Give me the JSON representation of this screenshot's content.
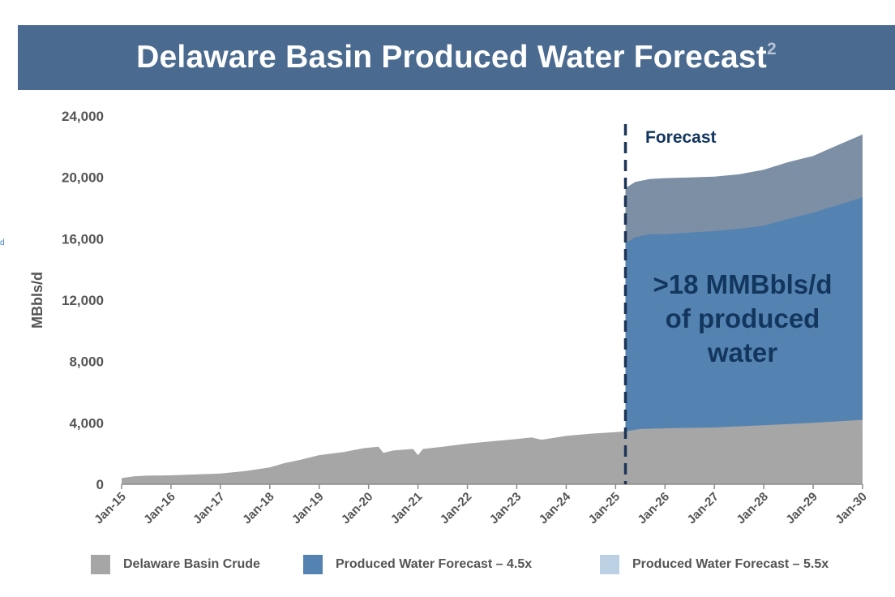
{
  "header": {
    "title": "Delaware Basin Produced Water Forecast",
    "superscript": "2"
  },
  "edge_fragment": "d",
  "colors": {
    "banner": "#4a6a90",
    "crude": "#a6a6a6",
    "water_45": "#5583b1",
    "water_55": "#7c8fa5",
    "legend_55_swatch": "#bcd0e3",
    "forecast_line": "#1c3556",
    "annotation": "#13365e"
  },
  "chart_data": {
    "type": "area",
    "title": "Delaware Basin Produced Water Forecast",
    "ylabel": "MBbls/d",
    "xlabel": "",
    "ylim": [
      0,
      24000
    ],
    "yticks": [
      0,
      4000,
      8000,
      12000,
      16000,
      20000,
      24000
    ],
    "ytick_labels": [
      "0",
      "4,000",
      "8,000",
      "12,000",
      "16,000",
      "20,000",
      "24,000"
    ],
    "xlim": [
      2015.0,
      2030.0
    ],
    "x_tick_labels": [
      "Jan-15",
      "Jan-16",
      "Jan-17",
      "Jan-18",
      "Jan-19",
      "Jan-20",
      "Jan-21",
      "Jan-22",
      "Jan-23",
      "Jan-24",
      "Jan-25",
      "Jan-26",
      "Jan-27",
      "Jan-28",
      "Jan-29",
      "Jan-30"
    ],
    "x_tick_values": [
      2015,
      2016,
      2017,
      2018,
      2019,
      2020,
      2021,
      2022,
      2023,
      2024,
      2025,
      2026,
      2027,
      2028,
      2029,
      2030
    ],
    "grid": false,
    "legend_position": "bottom",
    "forecast_start": 2025.2,
    "forecast_label": "Forecast",
    "annotation": ">18 MMBbls/d of produced water",
    "annotation_lines": [
      ">18 MMBbls/d",
      "of produced",
      "water"
    ],
    "series": [
      {
        "name": "Delaware Basin Crude",
        "x": [
          2015.0,
          2015.25,
          2015.5,
          2016.0,
          2016.5,
          2017.0,
          2017.5,
          2018.0,
          2018.3,
          2018.6,
          2019.0,
          2019.5,
          2019.9,
          2020.2,
          2020.3,
          2020.5,
          2020.9,
          2021.0,
          2021.1,
          2021.5,
          2022.0,
          2022.5,
          2023.0,
          2023.3,
          2023.5,
          2024.0,
          2024.5,
          2025.0,
          2025.2,
          2025.5,
          2026.0,
          2027.0,
          2028.0,
          2029.0,
          2030.0
        ],
        "values": [
          400,
          520,
          560,
          580,
          640,
          700,
          860,
          1100,
          1380,
          1580,
          1900,
          2100,
          2350,
          2450,
          2050,
          2200,
          2300,
          1900,
          2300,
          2450,
          2650,
          2800,
          2950,
          3050,
          2900,
          3150,
          3300,
          3400,
          3450,
          3600,
          3650,
          3700,
          3850,
          4000,
          4200
        ]
      },
      {
        "name": "Produced Water Forecast – 4.5x",
        "x": [
          2025.2,
          2025.4,
          2025.7,
          2026.0,
          2026.5,
          2027.0,
          2027.5,
          2028.0,
          2028.5,
          2029.0,
          2029.5,
          2030.0
        ],
        "values": [
          15700,
          16100,
          16300,
          16300,
          16400,
          16500,
          16650,
          16850,
          17300,
          17700,
          18200,
          18700
        ]
      },
      {
        "name": "Produced Water Forecast – 5.5x",
        "x": [
          2025.2,
          2025.4,
          2025.7,
          2026.0,
          2026.5,
          2027.0,
          2027.5,
          2028.0,
          2028.5,
          2029.0,
          2029.5,
          2030.0
        ],
        "values": [
          19300,
          19700,
          19900,
          19950,
          20000,
          20050,
          20200,
          20500,
          21000,
          21400,
          22100,
          22800
        ]
      }
    ]
  }
}
